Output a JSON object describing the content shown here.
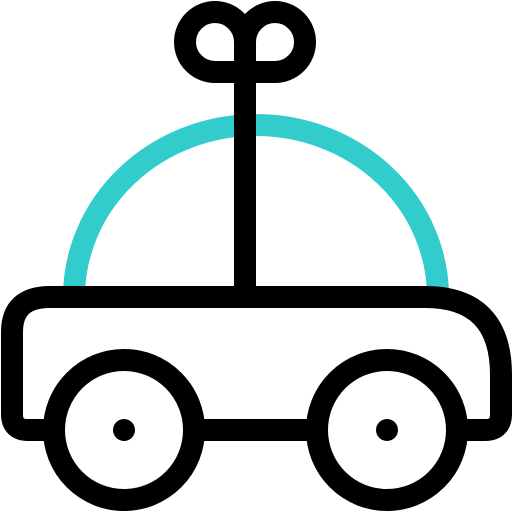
{
  "icon": {
    "name": "wind-up-toy-car-icon",
    "colors": {
      "outline": "#000000",
      "dome": "#33CCCC",
      "background": "#FFFFFF"
    }
  }
}
